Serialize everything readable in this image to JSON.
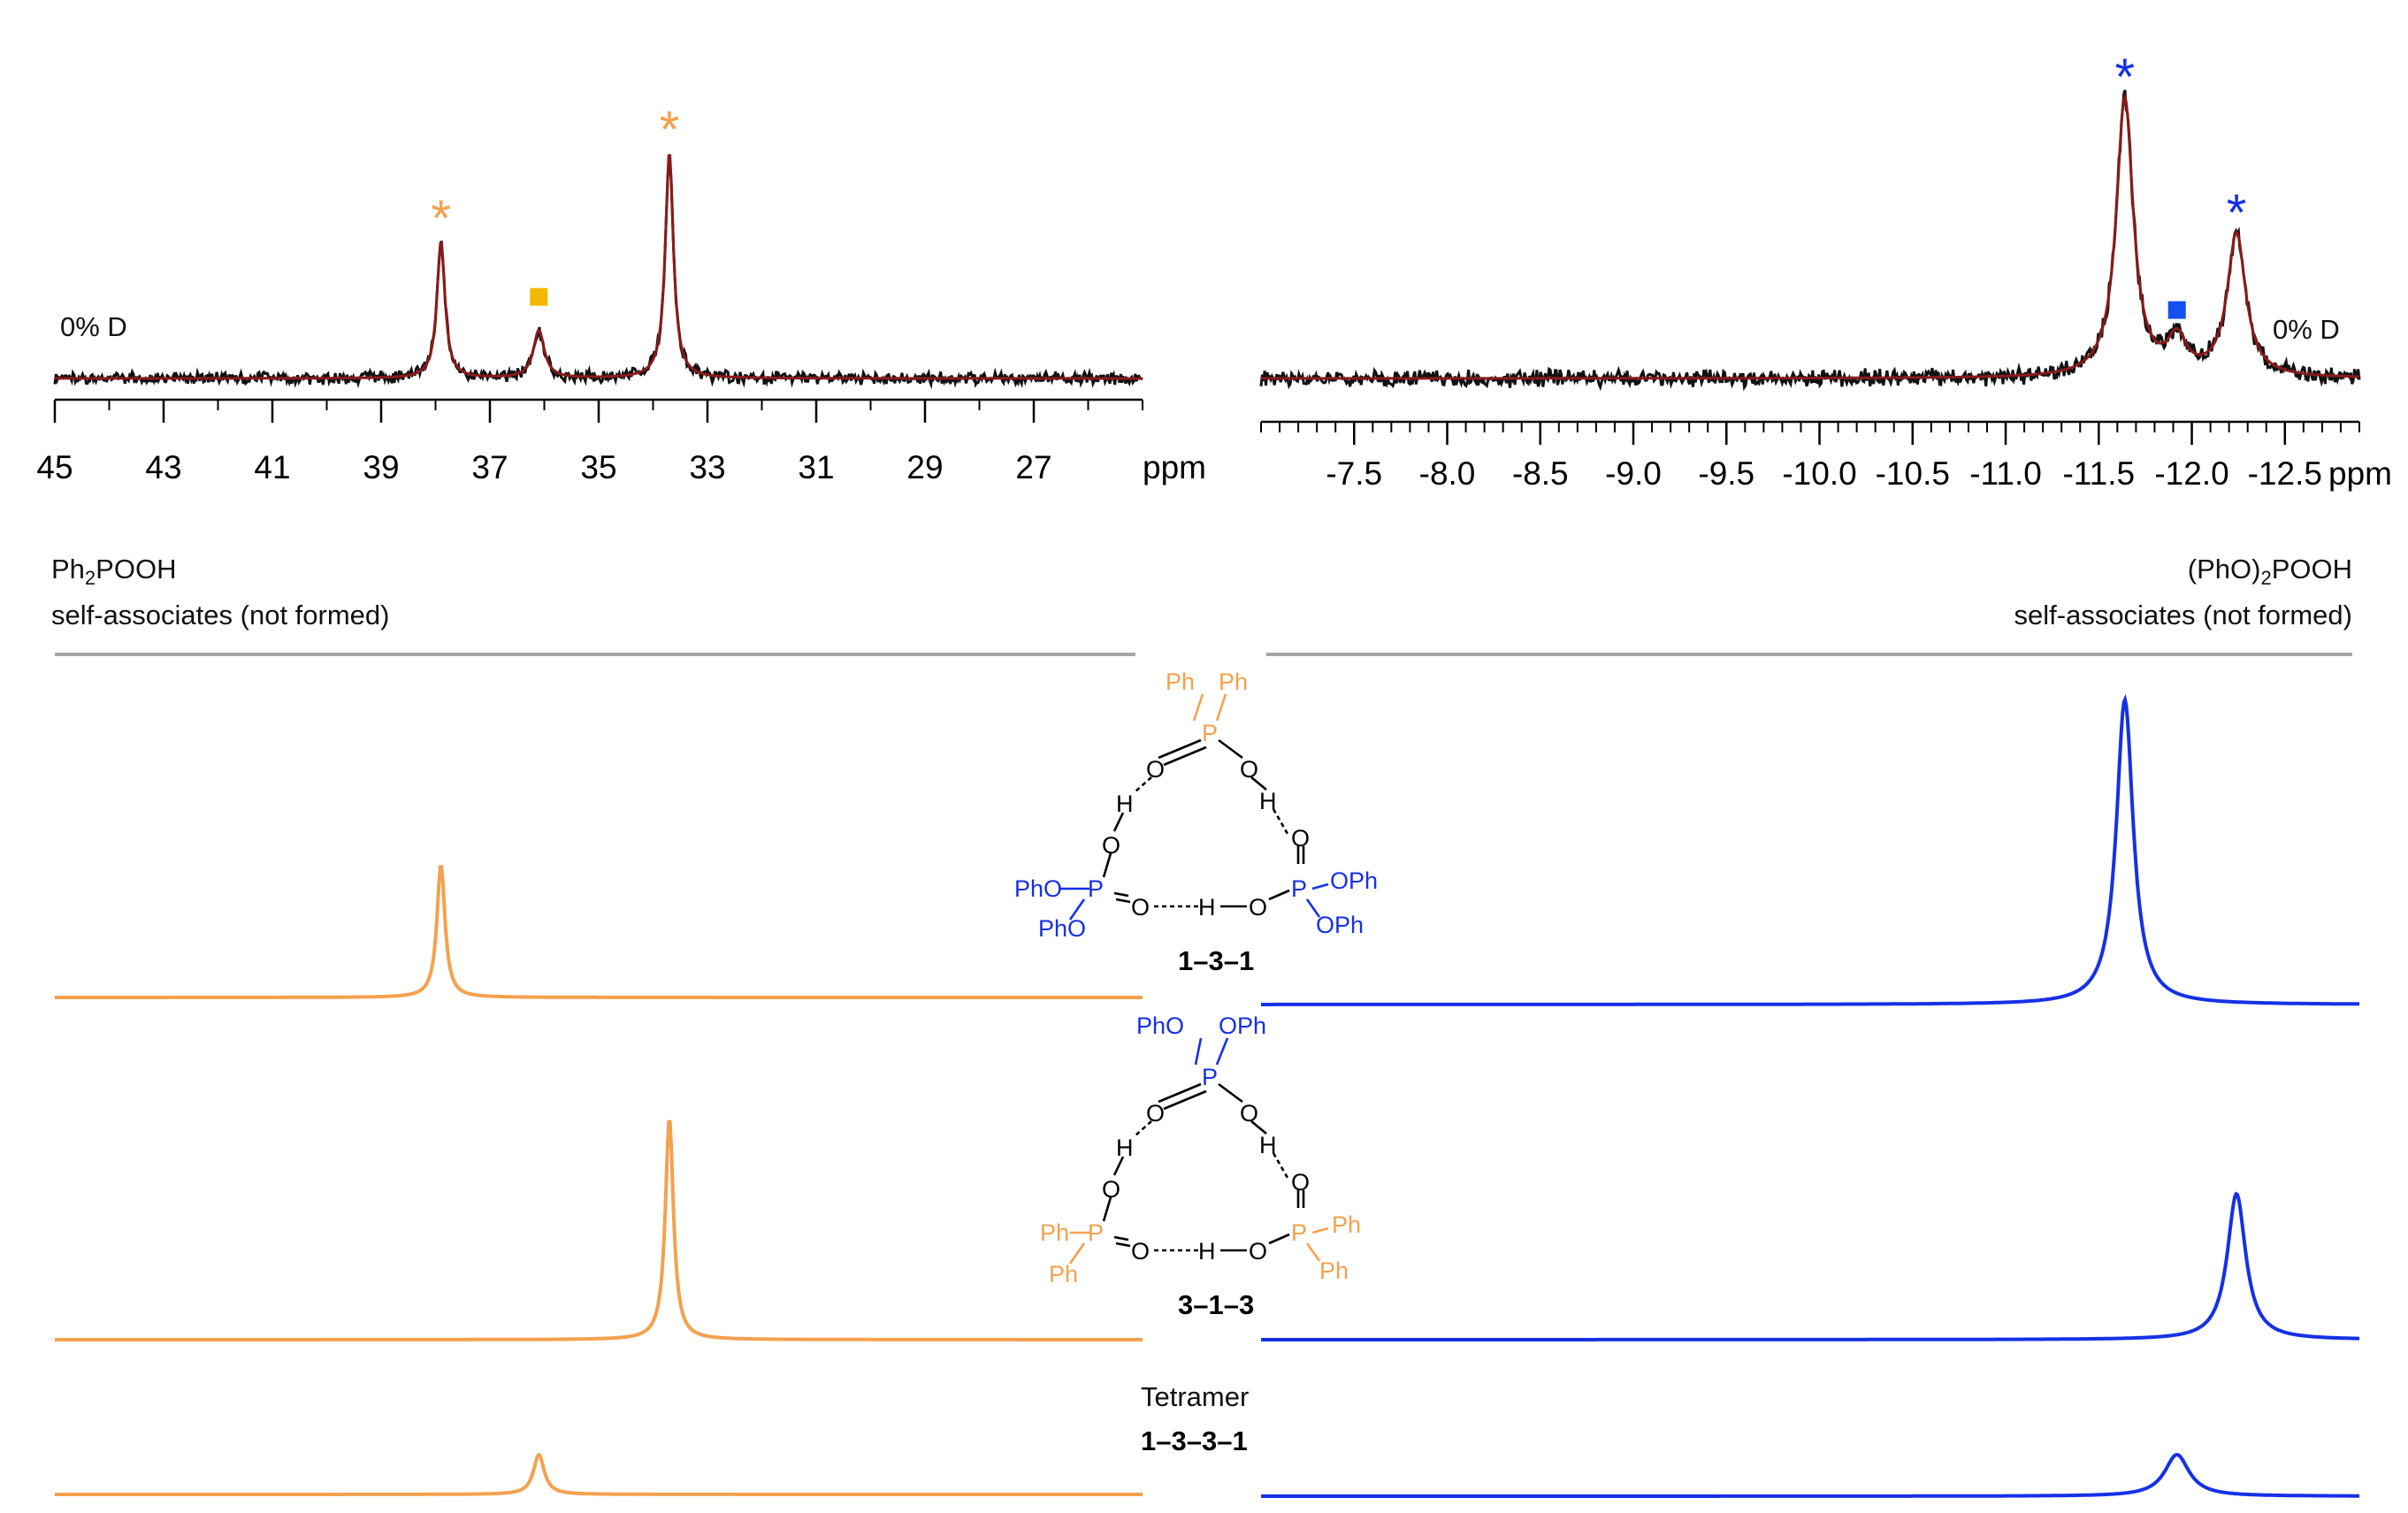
{
  "colors": {
    "orange": "#F4A14E",
    "blue": "#1531E6",
    "experimental": "#111111",
    "fit": "#8B1A1A",
    "divider": "#A6A6A6",
    "square_orange": "#F2B800",
    "square_blue": "#1450F0",
    "bond": "#000000"
  },
  "chart_data": [
    {
      "type": "line",
      "panel": "left-top",
      "title": "",
      "xlabel": "ppm",
      "ylabel": "",
      "xlim": [
        45,
        25
      ],
      "x_reversed": true,
      "ticks": [
        "45",
        "43",
        "41",
        "39",
        "37",
        "35",
        "33",
        "31",
        "29",
        "27"
      ],
      "tick_values": [
        45,
        43,
        41,
        39,
        37,
        35,
        33,
        31,
        29,
        27
      ],
      "minor_step": 1,
      "legend": "0% D",
      "series": [
        {
          "name": "experimental",
          "color": "experimental"
        },
        {
          "name": "fit",
          "color": "fit"
        }
      ],
      "peaks": [
        {
          "ppm": 37.9,
          "height": 1.0,
          "width": 0.09,
          "marker": "*",
          "marker_color": "orange"
        },
        {
          "ppm": 36.1,
          "height": 0.35,
          "width": 0.12,
          "marker": "square",
          "marker_color": "square_orange"
        },
        {
          "ppm": 33.7,
          "height": 1.65,
          "width": 0.09,
          "marker": "*",
          "marker_color": "orange"
        }
      ]
    },
    {
      "type": "line",
      "panel": "right-top",
      "title": "",
      "xlabel": "ppm",
      "ylabel": "",
      "xlim": [
        -7.0,
        -12.9
      ],
      "x_reversed": true,
      "ticks": [
        "-7.5",
        "-8.0",
        "-8.5",
        "-9.0",
        "-9.5",
        "-10.0",
        "-10.5",
        "-11.0",
        "-11.5",
        "-12.0",
        "-12.5"
      ],
      "tick_values": [
        -7.5,
        -8.0,
        -8.5,
        -9.0,
        -9.5,
        -10.0,
        -10.5,
        -11.0,
        -11.5,
        -12.0,
        -12.5
      ],
      "minor_step": 0.1,
      "legend": "0% D",
      "series": [
        {
          "name": "experimental",
          "color": "experimental"
        },
        {
          "name": "fit",
          "color": "fit"
        }
      ],
      "peaks": [
        {
          "ppm": -11.64,
          "height": 1.6,
          "width": 0.055,
          "marker": "*",
          "marker_color": "blue"
        },
        {
          "ppm": -11.92,
          "height": 0.2,
          "width": 0.06,
          "marker": "square",
          "marker_color": "square_blue"
        },
        {
          "ppm": -12.24,
          "height": 0.82,
          "width": 0.06,
          "marker": "*",
          "marker_color": "blue"
        }
      ]
    },
    {
      "type": "line",
      "panel": "simulated",
      "title": "",
      "xlabel": "",
      "ylabel": "",
      "series": [
        {
          "name": "Ph2POOH in 1-3-1",
          "group": "left",
          "color": "orange",
          "ppm": 37.9,
          "height": 1.0,
          "width": 0.09
        },
        {
          "name": "(PhO)2POOH in 1-3-1",
          "group": "right",
          "color": "blue",
          "ppm": -11.64,
          "height": 1.0,
          "width": 0.055
        },
        {
          "name": "Ph2POOH in 3-1-3",
          "group": "left",
          "color": "orange",
          "ppm": 33.7,
          "height": 1.0,
          "width": 0.09
        },
        {
          "name": "(PhO)2POOH in 3-1-3",
          "group": "right",
          "color": "blue",
          "ppm": -12.24,
          "height": 1.0,
          "width": 0.06
        },
        {
          "name": "Ph2POOH in 1-3-3-1",
          "group": "left",
          "color": "orange",
          "ppm": 36.1,
          "height": 1.0,
          "width": 0.12
        },
        {
          "name": "(PhO)2POOH in 1-3-3-1",
          "group": "right",
          "color": "blue",
          "ppm": -11.92,
          "height": 1.0,
          "width": 0.08
        }
      ]
    }
  ],
  "annotations": {
    "left_header": {
      "line1_prefix": "Ph",
      "line1_sub": "2",
      "line1_suffix": "POOH",
      "line2": "self-associates (not formed)"
    },
    "right_header": {
      "line1_prefix": "(PhO)",
      "line1_sub": "2",
      "line1_suffix": "POOH",
      "line2": "self-associates (not formed)"
    },
    "tetramer_title": "Tetramer",
    "tetramer_label": "1–3–3–1"
  },
  "molecules": {
    "m131": {
      "label": "1–3–1",
      "top_ph_left": "Ph",
      "top_ph_right": "Ph",
      "p": "P",
      "o": "O",
      "h": "H",
      "left_opp_top": "PhO",
      "left_opp_bottom": "PhO",
      "right_opp_top": "OPh",
      "right_opp_bottom": "OPh"
    },
    "m313": {
      "label": "3–1–3",
      "top_ph_left": "PhO",
      "top_ph_right": "OPh",
      "p": "P",
      "o": "O",
      "h": "H",
      "left_opp_top": "Ph",
      "left_opp_bottom": "Ph",
      "right_opp_top": "Ph",
      "right_opp_bottom": "Ph"
    }
  }
}
